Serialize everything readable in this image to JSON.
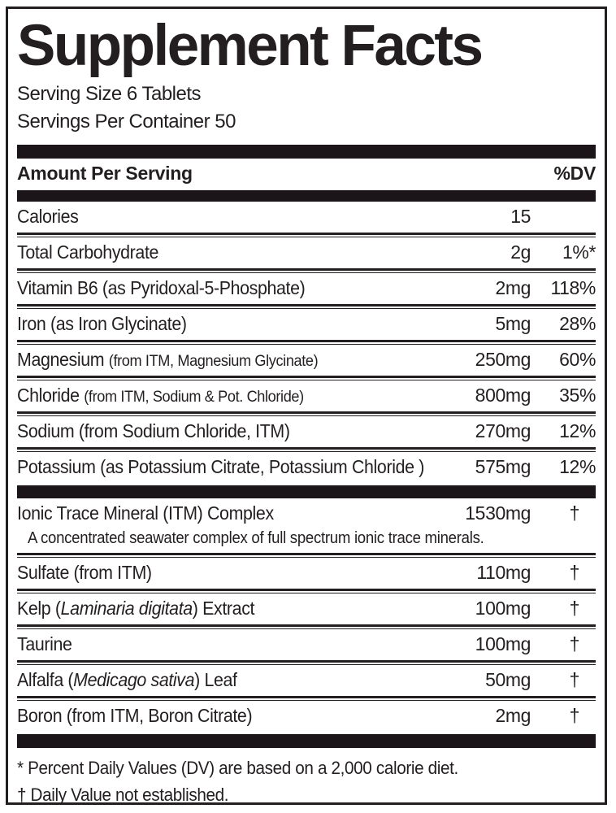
{
  "panel": {
    "title": "Supplement Facts",
    "serving_size": "Serving Size 6 Tablets",
    "servings_per_container": "Servings Per Container 50",
    "column_headers": {
      "amount": "Amount Per Serving",
      "dv": "%DV"
    }
  },
  "rows": [
    {
      "pre": "Calories",
      "small": "",
      "italic": "",
      "post": "",
      "amount": "15",
      "dv": ""
    },
    {
      "pre": "Total Carbohydrate",
      "small": "",
      "italic": "",
      "post": "",
      "amount": "2g",
      "dv": "1%*"
    },
    {
      "pre": "Vitamin B6 (as Pyridoxal-5-Phosphate)",
      "small": "",
      "italic": "",
      "post": "",
      "amount": "2mg",
      "dv": "118%"
    },
    {
      "pre": "Iron (as Iron Glycinate)",
      "small": "",
      "italic": "",
      "post": "",
      "amount": "5mg",
      "dv": "28%"
    },
    {
      "pre": "Magnesium ",
      "small": "(from ITM, Magnesium Glycinate)",
      "italic": "",
      "post": "",
      "amount": "250mg",
      "dv": "60%"
    },
    {
      "pre": "Chloride ",
      "small": "(from ITM, Sodium & Pot. Chloride)",
      "italic": "",
      "post": "",
      "amount": "800mg",
      "dv": "35%"
    },
    {
      "pre": "Sodium (from Sodium Chloride, ITM)",
      "small": "",
      "italic": "",
      "post": "",
      "amount": "270mg",
      "dv": "12%"
    },
    {
      "pre": "Potassium (as Potassium Citrate, Potassium Chloride )",
      "small": "",
      "italic": "",
      "post": "",
      "amount": "575mg",
      "dv": "12%"
    }
  ],
  "rows2": [
    {
      "pre": "Ionic Trace Mineral (ITM) Complex",
      "small": "",
      "italic": "",
      "post": "",
      "amount": "1530mg",
      "dv": "†",
      "note": "A concentrated seawater complex of full spectrum ionic trace minerals."
    },
    {
      "pre": "Sulfate (from ITM)",
      "small": "",
      "italic": "",
      "post": "",
      "amount": "110mg",
      "dv": "†"
    },
    {
      "pre": "Kelp (",
      "small": "",
      "italic": "Laminaria digitata",
      "post": ") Extract",
      "amount": "100mg",
      "dv": "†"
    },
    {
      "pre": "Taurine",
      "small": "",
      "italic": "",
      "post": "",
      "amount": "100mg",
      "dv": "†"
    },
    {
      "pre": "Alfalfa (",
      "small": "",
      "italic": "Medicago sativa",
      "post": ") Leaf",
      "amount": "50mg",
      "dv": "†"
    },
    {
      "pre": "Boron (from ITM, Boron Citrate)",
      "small": "",
      "italic": "",
      "post": "",
      "amount": "2mg",
      "dv": "†"
    }
  ],
  "footnotes": [
    "* Percent Daily Values (DV) are based on a 2,000 calorie diet.",
    "† Daily Value not established."
  ],
  "colors": {
    "text": "#231f20",
    "bar": "#1b1418",
    "border": "#231f20",
    "background": "#ffffff"
  }
}
